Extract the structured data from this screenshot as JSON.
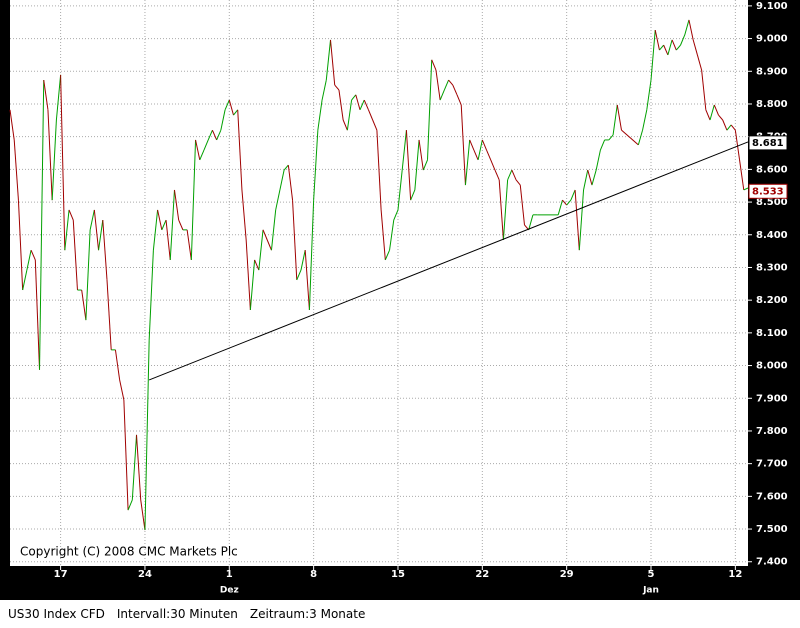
{
  "chart_data": {
    "type": "line",
    "copyright": "Copyright (C) 2008 CMC Markets Plc",
    "up_color": "#00a000",
    "down_color": "#a00000",
    "grid": true,
    "x": [
      0,
      1,
      2,
      3,
      4,
      5,
      6,
      7,
      8,
      9,
      10,
      11,
      12,
      13,
      14,
      15,
      16,
      17,
      18,
      19,
      20,
      21,
      22,
      23,
      24,
      25,
      26,
      27,
      28,
      29,
      30,
      31,
      32,
      33,
      34,
      35,
      36,
      37,
      38,
      39,
      40,
      41,
      42,
      43,
      44,
      45,
      46,
      47,
      48,
      49,
      50,
      51,
      52,
      53,
      54,
      55,
      56,
      57,
      58,
      59,
      60,
      61,
      62,
      63,
      64,
      65,
      66,
      67,
      68,
      69,
      70,
      71,
      72,
      73,
      74,
      75,
      76,
      77,
      78,
      79,
      80,
      81,
      82,
      83,
      84,
      85,
      86,
      87,
      88,
      89,
      90,
      91,
      92,
      93,
      94,
      95,
      96,
      97,
      98,
      99,
      100,
      101,
      102,
      103,
      104,
      105,
      106,
      107,
      108,
      109,
      110,
      111,
      112,
      113,
      114,
      115,
      116,
      117,
      118,
      119,
      120,
      121,
      122,
      123,
      124,
      125,
      130,
      131,
      132,
      133,
      134,
      135,
      136,
      137,
      138,
      139,
      140,
      141,
      142,
      143,
      144,
      145,
      149,
      150,
      151,
      152,
      153,
      154,
      155,
      156,
      157,
      158,
      159,
      160,
      161,
      162,
      163,
      164,
      165,
      166,
      167,
      168,
      169,
      170,
      171,
      172,
      173,
      174,
      175
    ],
    "values": [
      8782,
      8690,
      8506,
      8231,
      8292,
      8353,
      8323,
      7987,
      8873,
      8782,
      8506,
      8751,
      8889,
      8353,
      8476,
      8445,
      8231,
      8231,
      8139,
      8415,
      8476,
      8353,
      8445,
      8262,
      8048,
      8048,
      7956,
      7895,
      7558,
      7589,
      7788,
      7589,
      7497,
      8078,
      8353,
      8476,
      8415,
      8445,
      8323,
      8537,
      8445,
      8415,
      8415,
      8323,
      8690,
      8629,
      8659,
      8690,
      8720,
      8690,
      8720,
      8782,
      8812,
      8766,
      8782,
      8537,
      8384,
      8170,
      8323,
      8292,
      8415,
      8384,
      8353,
      8476,
      8537,
      8598,
      8613,
      8506,
      8262,
      8292,
      8353,
      8170,
      8506,
      8720,
      8812,
      8873,
      8996,
      8858,
      8843,
      8751,
      8720,
      8812,
      8828,
      8782,
      8812,
      8782,
      8751,
      8720,
      8476,
      8323,
      8353,
      8445,
      8476,
      8598,
      8720,
      8506,
      8537,
      8690,
      8598,
      8629,
      8935,
      8904,
      8812,
      8843,
      8873,
      8858,
      8828,
      8797,
      8552,
      8690,
      8659,
      8629,
      8690,
      8659,
      8629,
      8598,
      8568,
      8384,
      8568,
      8598,
      8568,
      8552,
      8430,
      8415,
      8461,
      8461,
      8461,
      8506,
      8491,
      8506,
      8537,
      8353,
      8537,
      8598,
      8552,
      8598,
      8659,
      8690,
      8690,
      8705,
      8797,
      8720,
      8675,
      8720,
      8782,
      8873,
      9026,
      8965,
      8980,
      8950,
      8996,
      8965,
      8980,
      9011,
      9057,
      8996,
      8950,
      8904,
      8782,
      8751,
      8797,
      8766,
      8751,
      8720,
      8736,
      8720,
      8629,
      8537,
      8543
    ],
    "trendline": {
      "x": [
        33,
        175
      ],
      "values": [
        7956,
        8684
      ]
    },
    "markers": [
      {
        "value": 8681,
        "label": "8.681",
        "color": "#000000"
      },
      {
        "value": 8533,
        "label": "8.533",
        "color": "#a00000"
      }
    ],
    "xlim": [
      0,
      175
    ],
    "xticks": [
      {
        "value": 12,
        "label": "17"
      },
      {
        "value": 32,
        "label": "24"
      },
      {
        "value": 52,
        "label": "1"
      },
      {
        "value": 72,
        "label": "8"
      },
      {
        "value": 92,
        "label": "15"
      },
      {
        "value": 112,
        "label": "22"
      },
      {
        "value": 132,
        "label": "29"
      },
      {
        "value": 152,
        "label": "5"
      },
      {
        "value": 172,
        "label": "12"
      }
    ],
    "month_labels": [
      {
        "value": 52,
        "label": "Dez"
      },
      {
        "value": 152,
        "label": "Jan"
      }
    ],
    "ylim": [
      7387,
      9118
    ],
    "yticks": [
      {
        "value": 7400,
        "label": "7.400"
      },
      {
        "value": 7500,
        "label": "7.500"
      },
      {
        "value": 7600,
        "label": "7.600"
      },
      {
        "value": 7700,
        "label": "7.700"
      },
      {
        "value": 7800,
        "label": "7.800"
      },
      {
        "value": 7900,
        "label": "7.900"
      },
      {
        "value": 8000,
        "label": "8.000"
      },
      {
        "value": 8100,
        "label": "8.100"
      },
      {
        "value": 8200,
        "label": "8.200"
      },
      {
        "value": 8300,
        "label": "8.300"
      },
      {
        "value": 8400,
        "label": "8.400"
      },
      {
        "value": 8500,
        "label": "8.500"
      },
      {
        "value": 8600,
        "label": "8.600"
      },
      {
        "value": 8700,
        "label": "8.700"
      },
      {
        "value": 8800,
        "label": "8.800"
      },
      {
        "value": 8900,
        "label": "8.900"
      },
      {
        "value": 9000,
        "label": "9.000"
      },
      {
        "value": 9100,
        "label": "9.100"
      }
    ]
  },
  "footer": {
    "instrument": "US30 Index CFD",
    "interval": "Intervall:30 Minuten",
    "period": "Zeitraum:3 Monate"
  }
}
